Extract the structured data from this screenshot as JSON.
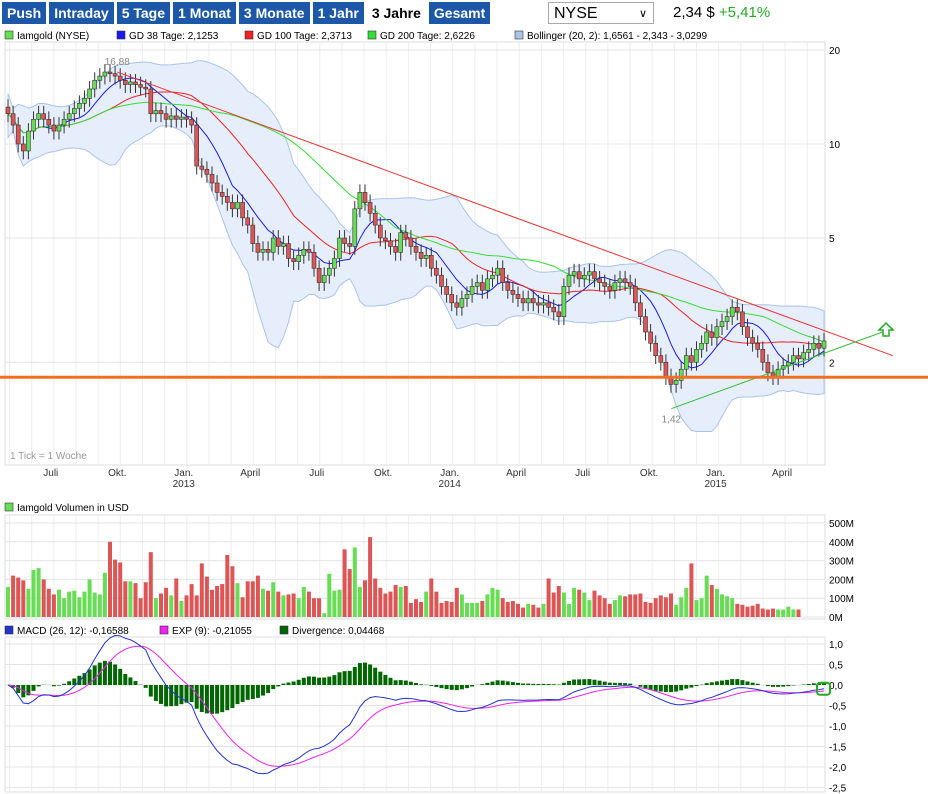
{
  "nav": {
    "buttons": [
      "Push",
      "Intraday",
      "5 Tage",
      "1 Monat",
      "3 Monate",
      "1 Jahr",
      "3 Jahre",
      "Gesamt"
    ],
    "active": "3 Jahre"
  },
  "exchange_select": {
    "value": "NYSE"
  },
  "quote": {
    "price": "2,34 $",
    "change": "+5,41%"
  },
  "colors": {
    "up": "#66dd55",
    "down": "#dd5555",
    "gd38": "#1a1aee",
    "gd100": "#ee2222",
    "gd200": "#33dd33",
    "bollinger": "#a9c4ea",
    "support": "#f07020",
    "resistance": "#ee3333",
    "uptrend": "#33bb33",
    "macd": "#2233cc",
    "exp": "#ee22ee",
    "divergence": "#006600"
  },
  "chart_data": [
    {
      "type": "candlestick",
      "title": "",
      "period": "weekly",
      "period_start": "2012-05",
      "scale": "log",
      "legend": [
        "Iamgold (NYSE)",
        "GD 38 Tage: 2,1253",
        "GD 100 Tage: 2,3713",
        "GD 200 Tage: 2,6226",
        "Bollinger (20, 2): 1,6561 - 2,343 - 3,0299"
      ],
      "y_ticks": [
        {
          "v": 20,
          "label": "20"
        },
        {
          "v": 10,
          "label": "10"
        },
        {
          "v": 5,
          "label": "5"
        },
        {
          "v": 2,
          "label": "2"
        }
      ],
      "ylim": [
        0.94,
        21.2
      ],
      "x_ticks": [
        {
          "date": "2012-07",
          "label": "Juli"
        },
        {
          "date": "2012-10",
          "label": "Okt."
        },
        {
          "date": "2013-01",
          "label": "Jan.",
          "sub": "2013"
        },
        {
          "date": "2013-04",
          "label": "April"
        },
        {
          "date": "2013-07",
          "label": "Juli"
        },
        {
          "date": "2013-10",
          "label": "Okt."
        },
        {
          "date": "2014-01",
          "label": "Jan.",
          "sub": "2014"
        },
        {
          "date": "2014-04",
          "label": "April"
        },
        {
          "date": "2014-07",
          "label": "Juli"
        },
        {
          "date": "2014-10",
          "label": "Okt."
        },
        {
          "date": "2015-01",
          "label": "Jan.",
          "sub": "2015"
        },
        {
          "date": "2015-04",
          "label": "April"
        }
      ],
      "closes": [
        12.5,
        11.5,
        10,
        9.5,
        11,
        12,
        12.5,
        12,
        11.5,
        11,
        11.5,
        12,
        12.5,
        13,
        13.5,
        14,
        15,
        16,
        16.5,
        17,
        16.8,
        16.5,
        16,
        15.5,
        15.8,
        15.5,
        15.2,
        15,
        12.5,
        12.8,
        12.5,
        12,
        12.3,
        12,
        12.2,
        12,
        11.5,
        8.5,
        8.3,
        8,
        7.5,
        7,
        6.8,
        6.5,
        6.2,
        6.5,
        5.8,
        5.5,
        4.8,
        4.5,
        4.6,
        4.5,
        5,
        4.7,
        4.8,
        4.3,
        4.2,
        4.4,
        4.6,
        4.5,
        4,
        3.6,
        3.8,
        4,
        4.3,
        5,
        4.8,
        4.7,
        6.2,
        7,
        6.5,
        6,
        5.5,
        5,
        4.9,
        4.7,
        4.5,
        5.2,
        5,
        4.7,
        4.5,
        4.3,
        4.4,
        4,
        3.8,
        3.5,
        3.3,
        3.1,
        3,
        3.2,
        3.3,
        3.5,
        3.6,
        3.4,
        3.7,
        3.8,
        4,
        3.6,
        3.4,
        3.3,
        3.2,
        3.1,
        3.2,
        3.1,
        3.05,
        3.1,
        3,
        2.9,
        2.8,
        3.5,
        3.8,
        3.9,
        3.7,
        3.8,
        3.9,
        3.7,
        3.6,
        3.5,
        3.4,
        3.6,
        3.7,
        3.6,
        3.5,
        3.1,
        2.8,
        2.5,
        2.3,
        2.1,
        2,
        1.8,
        1.7,
        1.75,
        1.9,
        2.1,
        2,
        2.2,
        2.3,
        2.5,
        2.4,
        2.6,
        2.7,
        2.8,
        3,
        2.9,
        2.6,
        2.4,
        2.3,
        2.2,
        2,
        1.85,
        1.8,
        1.9,
        1.95,
        2,
        2.1,
        2.05,
        2.15,
        2.2,
        2.3,
        2.22,
        2.34
      ],
      "annotations": [
        {
          "label": "16,88",
          "value": 16.88,
          "date": "2012-10"
        },
        {
          "label": "1,42",
          "value": 1.42,
          "date": "2014-11"
        }
      ],
      "note": "1 Tick = 1 Woche",
      "support_level": 1.79,
      "resistance_line": [
        {
          "date": "2012-10",
          "v": 17
        },
        {
          "date": "2015-09",
          "v": 2.1
        }
      ],
      "uptrend_line": [
        {
          "date": "2014-11",
          "v": 1.42
        },
        {
          "date": "2015-09",
          "v": 2.57
        }
      ],
      "signal": "arrow-up-icon"
    },
    {
      "type": "bar",
      "title": "Iamgold Volumen in USD",
      "ylim": [
        0,
        500
      ],
      "y_ticks": [
        "0M",
        "100M",
        "200M",
        "300M",
        "400M",
        "500M"
      ],
      "values_m": [
        160,
        220,
        210,
        195,
        150,
        250,
        260,
        200,
        150,
        120,
        145,
        100,
        135,
        140,
        105,
        135,
        200,
        130,
        120,
        235,
        400,
        305,
        290,
        190,
        190,
        180,
        100,
        185,
        345,
        100,
        125,
        155,
        115,
        205,
        85,
        115,
        175,
        115,
        285,
        215,
        145,
        165,
        175,
        330,
        270,
        180,
        105,
        190,
        190,
        220,
        150,
        140,
        185,
        135,
        115,
        120,
        125,
        100,
        160,
        135,
        100,
        100,
        20,
        230,
        140,
        145,
        360,
        255,
        370,
        160,
        195,
        425,
        205,
        155,
        125,
        135,
        170,
        160,
        165,
        75,
        95,
        80,
        135,
        205,
        135,
        75,
        85,
        80,
        155,
        120,
        75,
        75,
        75,
        85,
        120,
        155,
        145,
        100,
        80,
        85,
        70,
        50,
        70,
        65,
        50,
        70,
        205,
        130,
        165,
        130,
        70,
        155,
        145,
        130,
        90,
        140,
        115,
        100,
        70,
        90,
        115,
        110,
        120,
        120,
        125,
        80,
        75,
        100,
        115,
        105,
        125,
        65,
        105,
        155,
        285,
        90,
        100,
        220,
        170,
        150,
        120,
        110,
        100,
        70,
        65,
        55,
        60,
        70,
        45,
        40,
        45,
        40,
        40,
        55,
        40,
        40
      ]
    },
    {
      "type": "line",
      "title": "",
      "legend": [
        "MACD (26, 12): -0,16588",
        "EXP (9): -0,21055",
        "Divergence: 0,04468"
      ],
      "ylim": [
        -2.5,
        1.0
      ],
      "y_ticks": [
        "1,0",
        "0,5",
        "0,0",
        "-0,5",
        "-1,0",
        "-1,5",
        "-2,0",
        "-2,5"
      ]
    }
  ]
}
